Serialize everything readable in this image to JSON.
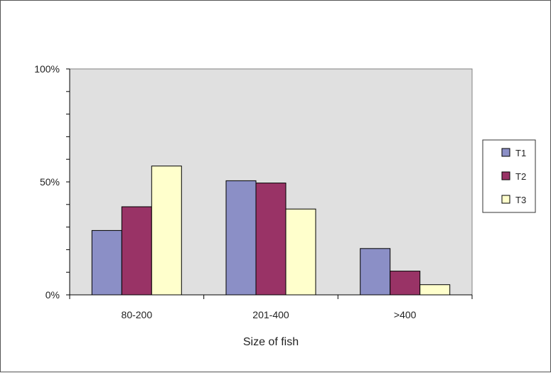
{
  "chart_data": {
    "type": "bar",
    "title": "",
    "xlabel": "Size of fish",
    "ylabel": "",
    "categories": [
      "80-200",
      "201-400",
      ">400"
    ],
    "series": [
      {
        "name": "T1",
        "values": [
          28.5,
          50.5,
          20.5
        ],
        "color": "#8b8fc6"
      },
      {
        "name": "T2",
        "values": [
          39,
          49.5,
          10.5
        ],
        "color": "#993366"
      },
      {
        "name": "T3",
        "values": [
          57,
          38,
          4.5
        ],
        "color": "#ffffcc"
      }
    ],
    "ylim": [
      0,
      100
    ],
    "yticks": [
      {
        "value": 0,
        "label": "0%"
      },
      {
        "value": 50,
        "label": "50%"
      },
      {
        "value": 100,
        "label": "100%"
      }
    ],
    "minor_yticks": [
      10,
      20,
      30,
      40,
      60,
      70,
      80,
      90
    ],
    "plot_background": "#e0e0e0",
    "grid": false,
    "legend_position": "right"
  }
}
